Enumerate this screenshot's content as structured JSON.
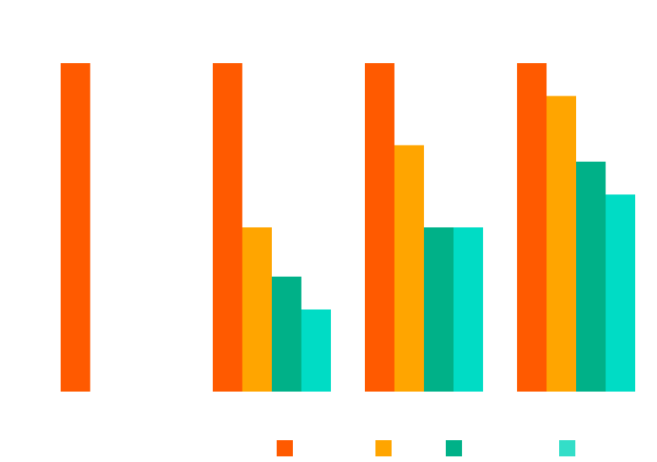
{
  "chart_data": {
    "type": "bar",
    "title": "",
    "xlabel": "",
    "ylabel": "",
    "ylim": [
      0,
      100
    ],
    "grid": false,
    "legend_position": "bottom",
    "categories": [
      "",
      "",
      "",
      ""
    ],
    "series": [
      {
        "name": "",
        "color": "#FF5A00",
        "values": [
          100,
          100,
          100,
          100
        ]
      },
      {
        "name": "",
        "color": "#FFA500",
        "values": [
          null,
          50,
          75,
          90
        ]
      },
      {
        "name": "",
        "color": "#00B188",
        "values": [
          null,
          35,
          50,
          70
        ]
      },
      {
        "name": "",
        "color": "#00DCC5",
        "values": [
          null,
          25,
          50,
          60
        ]
      }
    ],
    "legend_swatch_colors": [
      "#FF5A00",
      "#FFA500",
      "#00B188",
      "#33DEC8"
    ]
  }
}
